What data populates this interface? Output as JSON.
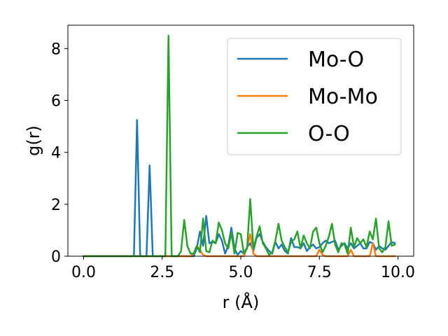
{
  "chart_data": {
    "type": "line",
    "xlabel": "r (Å)",
    "ylabel": "g(r)",
    "xlim": [
      -0.5,
      10.5
    ],
    "ylim": [
      0,
      8.9
    ],
    "xticks": [
      {
        "value": 0.0,
        "label": "0.0"
      },
      {
        "value": 2.5,
        "label": "2.5"
      },
      {
        "value": 5.0,
        "label": "5.0"
      },
      {
        "value": 7.5,
        "label": "7.5"
      },
      {
        "value": 10.0,
        "label": "10.0"
      }
    ],
    "yticks": [
      {
        "value": 0,
        "label": "0"
      },
      {
        "value": 2,
        "label": "2"
      },
      {
        "value": 4,
        "label": "4"
      },
      {
        "value": 6,
        "label": "6"
      },
      {
        "value": 8,
        "label": "8"
      }
    ],
    "grid": false,
    "legend_position": "top-right",
    "series": [
      {
        "name": "Mo-O",
        "color": "#1f77b4",
        "x": [
          0,
          1.6,
          1.7,
          1.8,
          1.9,
          2.0,
          2.1,
          2.2,
          2.3,
          3.5,
          3.6,
          3.7,
          3.8,
          3.9,
          4.0,
          4.1,
          4.2,
          4.3,
          4.4,
          4.5,
          4.6,
          4.7,
          4.8,
          4.9,
          5.0,
          5.1,
          5.2,
          5.3,
          5.4,
          5.5,
          5.6,
          5.7,
          5.8,
          5.9,
          6.0,
          6.1,
          6.2,
          6.3,
          6.4,
          6.5,
          6.6,
          6.7,
          6.8,
          6.9,
          7.0,
          7.1,
          7.2,
          7.3,
          7.4,
          7.5,
          7.6,
          7.7,
          7.8,
          7.9,
          8.0,
          8.1,
          8.2,
          8.3,
          8.4,
          8.5,
          8.6,
          8.7,
          8.8,
          8.9,
          9.0,
          9.1,
          9.2,
          9.3,
          9.4,
          9.5,
          9.6,
          9.7,
          9.8,
          9.9
        ],
        "y": [
          0,
          0,
          5.25,
          0,
          0,
          0,
          3.5,
          0,
          0,
          0,
          0.3,
          0.95,
          0.4,
          1.55,
          0.5,
          0.55,
          0.5,
          0.85,
          0.6,
          0.1,
          0.4,
          1.1,
          0.3,
          0.05,
          0.2,
          0.1,
          0.35,
          0.5,
          0.2,
          0.7,
          0.85,
          0.55,
          0.35,
          0.2,
          0.1,
          0.55,
          0.3,
          0.45,
          0.2,
          0.1,
          0.7,
          0.35,
          0.35,
          0.3,
          0.5,
          0.2,
          0.35,
          0.45,
          0.3,
          0.35,
          0.5,
          0.6,
          0.5,
          0.55,
          0.6,
          0.25,
          0.4,
          0.5,
          0.3,
          0.5,
          0.3,
          0.4,
          0.5,
          0.3,
          0.3,
          0.55,
          0.5,
          0.25,
          0.4,
          0.3,
          0.25,
          0.4,
          0.55,
          0.5
        ]
      },
      {
        "name": "Mo-Mo",
        "color": "#ff7f0e",
        "x": [
          0,
          3.4,
          3.5,
          3.6,
          3.7,
          3.8,
          3.9,
          4.0,
          5.1,
          5.2,
          5.3,
          5.4,
          5.5,
          7.4,
          7.5,
          7.6,
          7.7,
          8.4,
          8.5,
          8.6,
          9.1,
          9.2,
          9.3,
          9.9
        ],
        "y": [
          0,
          0,
          0.1,
          0.4,
          0.25,
          0.05,
          0,
          0,
          0,
          0.35,
          0.85,
          0.1,
          0,
          0,
          0.25,
          0.05,
          0,
          0,
          0.25,
          0,
          0,
          0.5,
          0,
          0
        ]
      },
      {
        "name": "O-O",
        "color": "#2ca02c",
        "x": [
          0,
          2.5,
          2.6,
          2.7,
          2.8,
          2.9,
          3.0,
          3.1,
          3.2,
          3.3,
          3.4,
          3.5,
          3.6,
          3.7,
          3.8,
          3.9,
          4.0,
          4.1,
          4.2,
          4.3,
          4.4,
          4.5,
          4.6,
          4.7,
          4.8,
          4.9,
          5.0,
          5.1,
          5.2,
          5.3,
          5.4,
          5.5,
          5.6,
          5.7,
          5.8,
          5.9,
          6.0,
          6.1,
          6.2,
          6.3,
          6.4,
          6.5,
          6.6,
          6.7,
          6.8,
          6.9,
          7.0,
          7.1,
          7.2,
          7.3,
          7.4,
          7.5,
          7.6,
          7.7,
          7.8,
          7.9,
          8.0,
          8.1,
          8.2,
          8.3,
          8.4,
          8.5,
          8.6,
          8.7,
          8.8,
          8.9,
          9.0,
          9.1,
          9.2,
          9.3,
          9.4,
          9.5,
          9.6,
          9.7,
          9.8,
          9.9
        ],
        "y": [
          0,
          0,
          0,
          8.5,
          0,
          0,
          0,
          0.2,
          1.4,
          0.4,
          0.1,
          0.1,
          0.4,
          0.15,
          1.45,
          0.2,
          0.15,
          0.6,
          0.5,
          1.3,
          1.0,
          0.5,
          0.3,
          0.9,
          0.1,
          0.9,
          0.85,
          0.1,
          0.3,
          2.2,
          0.3,
          0.75,
          1.15,
          0.5,
          0.3,
          0.05,
          0.15,
          0.6,
          1.25,
          0.6,
          0.35,
          0.15,
          0.55,
          0.65,
          0.95,
          0.3,
          0.8,
          0.5,
          0.3,
          0.95,
          1.1,
          0.5,
          0.15,
          0.4,
          0.75,
          1.25,
          0.45,
          0.15,
          0.5,
          0.45,
          0.1,
          1.1,
          0.35,
          0.7,
          0.5,
          0.65,
          0.35,
          0.95,
          0.65,
          1.45,
          0.3,
          0.15,
          0.35,
          1.35,
          0.4,
          0.45
        ]
      }
    ]
  }
}
